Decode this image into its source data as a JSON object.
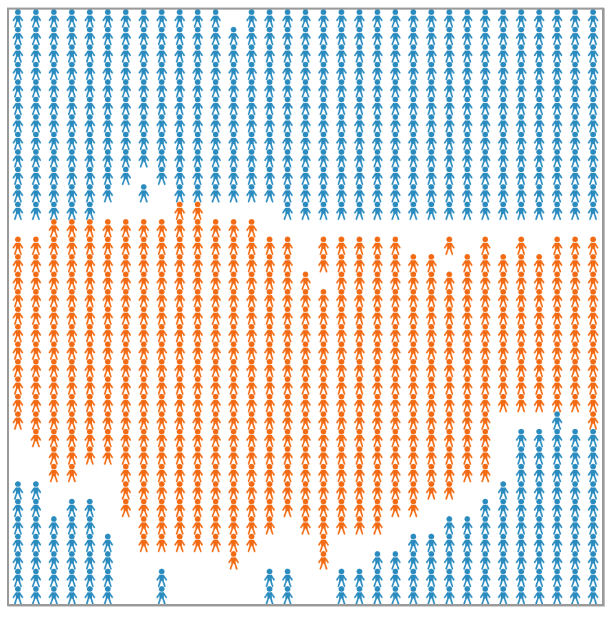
{
  "game": {
    "grid_columns": 33,
    "grid_rows": 34,
    "colors": {
      "group_a": "#2a8bbf",
      "group_b": "#f26b14",
      "empty": "#ffffff",
      "border": "#9a9a9a"
    },
    "icon": "person-icon",
    "columns": [
      {
        "a": [
          [
            0,
            11
          ],
          [
            27,
            33
          ]
        ],
        "b": [
          [
            13,
            23
          ]
        ]
      },
      {
        "a": [
          [
            0,
            11
          ],
          [
            27,
            33
          ]
        ],
        "b": [
          [
            13,
            24
          ]
        ]
      },
      {
        "a": [
          [
            0,
            11
          ],
          [
            29,
            33
          ]
        ],
        "b": [
          [
            12,
            26
          ]
        ]
      },
      {
        "a": [
          [
            0,
            11
          ],
          [
            28,
            33
          ]
        ],
        "b": [
          [
            12,
            26
          ]
        ]
      },
      {
        "a": [
          [
            0,
            11
          ],
          [
            28,
            33
          ]
        ],
        "b": [
          [
            12,
            25
          ]
        ]
      },
      {
        "a": [
          [
            0,
            10
          ],
          [
            30,
            33
          ]
        ],
        "b": [
          [
            12,
            25
          ]
        ]
      },
      {
        "a": [
          [
            0,
            9
          ]
        ],
        "b": [
          [
            12,
            28
          ]
        ]
      },
      {
        "a": [
          [
            0,
            8
          ],
          [
            10,
            10
          ]
        ],
        "b": [
          [
            12,
            30
          ]
        ]
      },
      {
        "a": [
          [
            0,
            9
          ],
          [
            32,
            33
          ]
        ],
        "b": [
          [
            12,
            30
          ]
        ]
      },
      {
        "a": [
          [
            0,
            10
          ]
        ],
        "b": [
          [
            11,
            30
          ]
        ]
      },
      {
        "a": [
          [
            0,
            10
          ]
        ],
        "b": [
          [
            11,
            30
          ]
        ]
      },
      {
        "a": [
          [
            0,
            10
          ]
        ],
        "b": [
          [
            12,
            30
          ]
        ]
      },
      {
        "a": [
          [
            1,
            10
          ]
        ],
        "b": [
          [
            12,
            31
          ]
        ]
      },
      {
        "a": [
          [
            0,
            10
          ]
        ],
        "b": [
          [
            12,
            30
          ]
        ]
      },
      {
        "a": [
          [
            0,
            10
          ],
          [
            32,
            33
          ]
        ],
        "b": [
          [
            13,
            29
          ]
        ]
      },
      {
        "a": [
          [
            0,
            11
          ],
          [
            32,
            33
          ]
        ],
        "b": [
          [
            13,
            28
          ]
        ]
      },
      {
        "a": [
          [
            0,
            11
          ]
        ],
        "b": [
          [
            15,
            29
          ]
        ]
      },
      {
        "a": [
          [
            0,
            11
          ]
        ],
        "b": [
          [
            13,
            14
          ],
          [
            16,
            31
          ]
        ]
      },
      {
        "a": [
          [
            0,
            11
          ],
          [
            32,
            33
          ]
        ],
        "b": [
          [
            13,
            29
          ]
        ]
      },
      {
        "a": [
          [
            0,
            11
          ],
          [
            32,
            33
          ]
        ],
        "b": [
          [
            13,
            29
          ]
        ]
      },
      {
        "a": [
          [
            0,
            11
          ],
          [
            31,
            33
          ]
        ],
        "b": [
          [
            13,
            29
          ]
        ]
      },
      {
        "a": [
          [
            0,
            11
          ],
          [
            31,
            33
          ]
        ],
        "b": [
          [
            13,
            28
          ]
        ]
      },
      {
        "a": [
          [
            0,
            11
          ],
          [
            30,
            33
          ]
        ],
        "b": [
          [
            14,
            28
          ]
        ]
      },
      {
        "a": [
          [
            0,
            11
          ],
          [
            30,
            33
          ]
        ],
        "b": [
          [
            14,
            27
          ]
        ]
      },
      {
        "a": [
          [
            0,
            11
          ],
          [
            29,
            33
          ]
        ],
        "b": [
          [
            13,
            13
          ],
          [
            15,
            27
          ]
        ]
      },
      {
        "a": [
          [
            0,
            11
          ],
          [
            29,
            33
          ]
        ],
        "b": [
          [
            14,
            26
          ]
        ]
      },
      {
        "a": [
          [
            0,
            11
          ],
          [
            28,
            33
          ]
        ],
        "b": [
          [
            13,
            26
          ]
        ]
      },
      {
        "a": [
          [
            0,
            11
          ],
          [
            27,
            33
          ]
        ],
        "b": [
          [
            14,
            22
          ]
        ]
      },
      {
        "a": [
          [
            0,
            11
          ],
          [
            24,
            33
          ]
        ],
        "b": [
          [
            13,
            13
          ],
          [
            14,
            22
          ]
        ]
      },
      {
        "a": [
          [
            0,
            11
          ],
          [
            24,
            33
          ]
        ],
        "b": [
          [
            14,
            22
          ]
        ]
      },
      {
        "a": [
          [
            0,
            11
          ],
          [
            23,
            33
          ]
        ],
        "b": [
          [
            13,
            22
          ]
        ]
      },
      {
        "a": [
          [
            0,
            11
          ],
          [
            24,
            33
          ]
        ],
        "b": [
          [
            13,
            22
          ]
        ]
      },
      {
        "a": [
          [
            0,
            11
          ],
          [
            24,
            33
          ]
        ],
        "b": [
          [
            13,
            23
          ]
        ]
      }
    ]
  }
}
